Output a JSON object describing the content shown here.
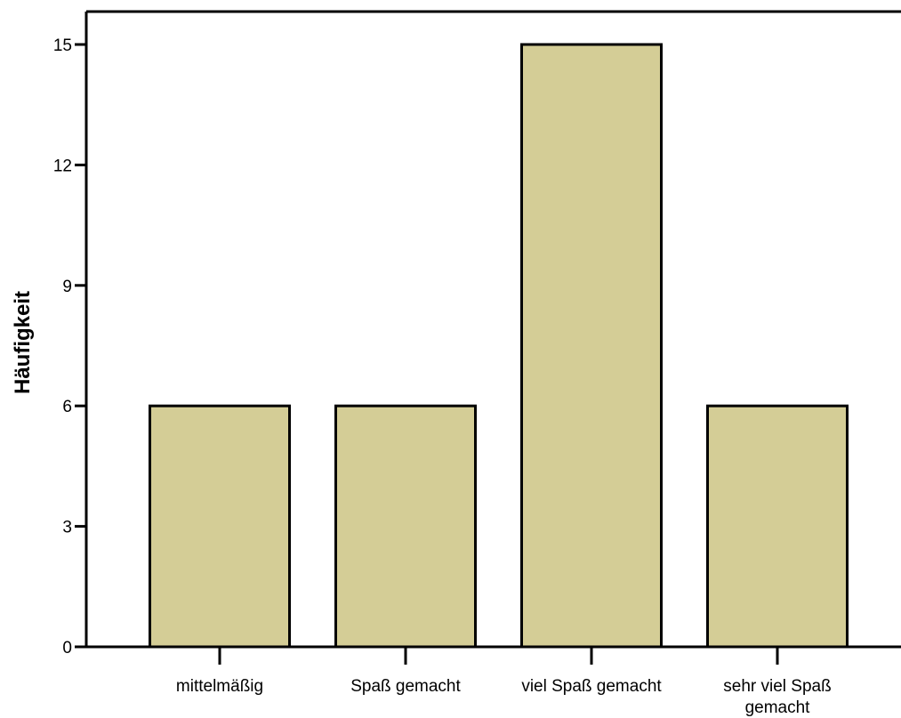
{
  "chart_data": {
    "type": "bar",
    "categories": [
      "mittelmäßig",
      "Spaß gemacht",
      "viel Spaß gemacht",
      "sehr viel Spaß gemacht"
    ],
    "category_label_lines": [
      [
        "mittelmäßig"
      ],
      [
        "Spaß gemacht"
      ],
      [
        "viel Spaß gemacht"
      ],
      [
        "sehr viel Spaß",
        "gemacht"
      ]
    ],
    "values": [
      6,
      6,
      15,
      6
    ],
    "title": "",
    "xlabel": "",
    "ylabel": "Häufigkeit",
    "ylim": [
      0,
      15
    ],
    "yticks": [
      0,
      3,
      6,
      9,
      12,
      15
    ],
    "grid": false,
    "legend": "none",
    "colors": {
      "bar_fill": "#d4cd96",
      "bar_stroke": "#000000",
      "axis": "#000000"
    }
  }
}
